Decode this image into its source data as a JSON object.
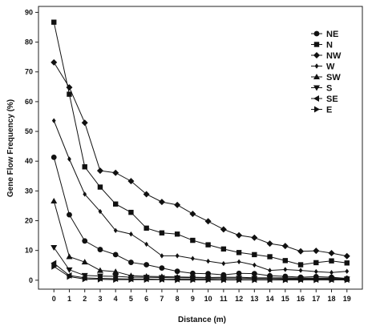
{
  "chart_data": {
    "type": "line",
    "title": "",
    "xlabel": "Distance (m)",
    "ylabel": "Gene Flow Frequency (%)",
    "x": [
      0,
      1,
      2,
      3,
      4,
      5,
      6,
      7,
      8,
      9,
      10,
      11,
      12,
      13,
      14,
      15,
      16,
      17,
      18,
      19
    ],
    "xlim": [
      -1,
      20
    ],
    "ylim": [
      -3,
      92
    ],
    "yticks": [
      0,
      10,
      20,
      30,
      40,
      50,
      60,
      70,
      80,
      90
    ],
    "grid": false,
    "legend_position": "top-right",
    "series": [
      {
        "name": "NE",
        "marker": "circle",
        "values": [
          41.3,
          22.0,
          13.2,
          10.3,
          8.6,
          6.0,
          5.2,
          4.1,
          3.0,
          2.3,
          2.2,
          1.8,
          2.3,
          2.2,
          1.5,
          1.3,
          1.0,
          1.2,
          1.0,
          0.6
        ]
      },
      {
        "name": "N",
        "marker": "square",
        "values": [
          86.7,
          62.5,
          38.1,
          31.3,
          25.6,
          22.8,
          17.5,
          15.9,
          15.5,
          13.4,
          11.9,
          10.5,
          9.3,
          8.6,
          7.9,
          6.6,
          5.2,
          5.9,
          6.5,
          5.8
        ]
      },
      {
        "name": "NW",
        "marker": "diamond",
        "values": [
          73.2,
          64.8,
          52.9,
          36.8,
          36.1,
          33.3,
          28.9,
          26.3,
          25.3,
          22.3,
          19.8,
          17.1,
          15.1,
          14.3,
          12.3,
          11.5,
          9.7,
          9.9,
          9.1,
          8.1
        ]
      },
      {
        "name": "W",
        "marker": "diamond-small",
        "values": [
          53.6,
          40.7,
          28.9,
          23.1,
          16.7,
          15.5,
          12.1,
          8.2,
          8.2,
          7.3,
          6.4,
          5.6,
          6.2,
          5.1,
          3.3,
          3.6,
          3.3,
          2.9,
          2.6,
          3.0
        ]
      },
      {
        "name": "SW",
        "marker": "triangle-up",
        "values": [
          26.6,
          7.9,
          6.1,
          3.3,
          2.9,
          1.5,
          1.3,
          1.2,
          1.1,
          1.0,
          0.9,
          1.0,
          1.0,
          0.8,
          0.8,
          0.8,
          0.7,
          0.7,
          0.7,
          0.6
        ]
      },
      {
        "name": "S",
        "marker": "triangle-down",
        "values": [
          11.0,
          3.5,
          1.6,
          1.4,
          1.3,
          1.0,
          1.0,
          0.9,
          0.8,
          0.8,
          0.7,
          0.7,
          0.7,
          0.6,
          0.6,
          0.5,
          0.5,
          0.5,
          0.5,
          0.4
        ]
      },
      {
        "name": "SE",
        "marker": "triangle-left",
        "values": [
          5.7,
          1.6,
          0.8,
          0.6,
          0.5,
          0.4,
          0.4,
          0.3,
          0.3,
          0.3,
          0.3,
          0.2,
          0.2,
          0.2,
          0.2,
          0.2,
          0.2,
          0.2,
          0.2,
          0.2
        ]
      },
      {
        "name": "E",
        "marker": "triangle-right",
        "values": [
          4.6,
          1.2,
          0.4,
          0.3,
          0.2,
          0.2,
          0.2,
          0.2,
          0.1,
          0.1,
          0.1,
          0.1,
          0.1,
          0.1,
          0.1,
          0.1,
          0.1,
          0.1,
          0.1,
          0.1
        ]
      }
    ]
  }
}
